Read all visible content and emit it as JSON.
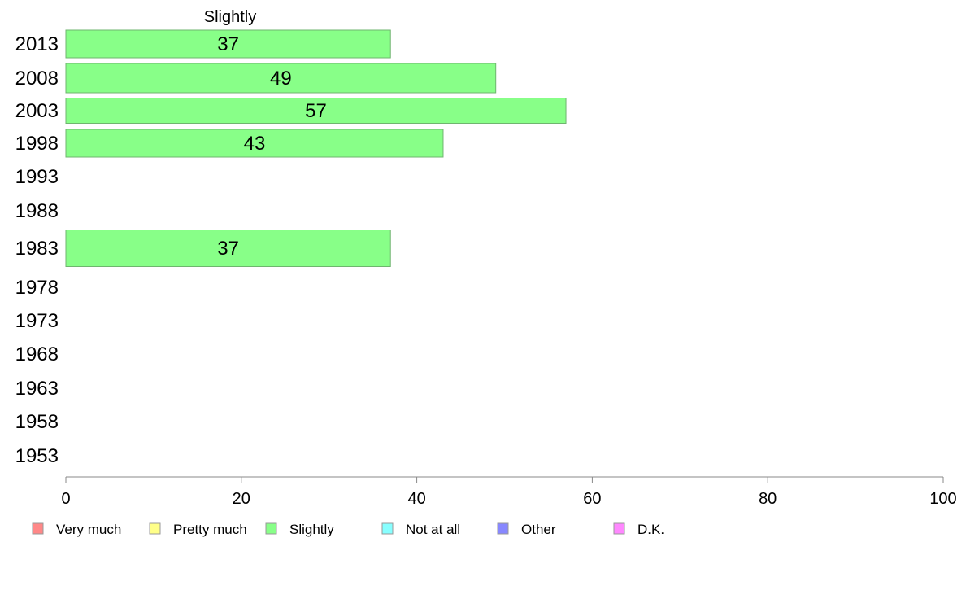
{
  "chart_data": {
    "type": "bar",
    "orientation": "horizontal",
    "title": "Slightly",
    "categories": [
      "2013",
      "2008",
      "2003",
      "1998",
      "1993",
      "1988",
      "1983",
      "1978",
      "1973",
      "1968",
      "1963",
      "1958",
      "1953"
    ],
    "series": [
      {
        "name": "Slightly",
        "color": "#88ff88",
        "values": [
          37,
          49,
          57,
          43,
          null,
          null,
          37,
          null,
          null,
          null,
          null,
          null,
          null
        ]
      }
    ],
    "xlim": [
      0,
      100
    ],
    "xticks": [
      0,
      20,
      40,
      60,
      80,
      100
    ],
    "xlabel": "",
    "ylabel": "",
    "grid": false,
    "legend_position": "bottom",
    "legend": [
      {
        "label": "Very much",
        "color": "#ff8888"
      },
      {
        "label": "Pretty much",
        "color": "#ffff88"
      },
      {
        "label": "Slightly",
        "color": "#88ff88"
      },
      {
        "label": "Not at all",
        "color": "#88ffff"
      },
      {
        "label": "Other",
        "color": "#8888ff"
      },
      {
        "label": "D.K.",
        "color": "#ff88ff"
      }
    ]
  }
}
